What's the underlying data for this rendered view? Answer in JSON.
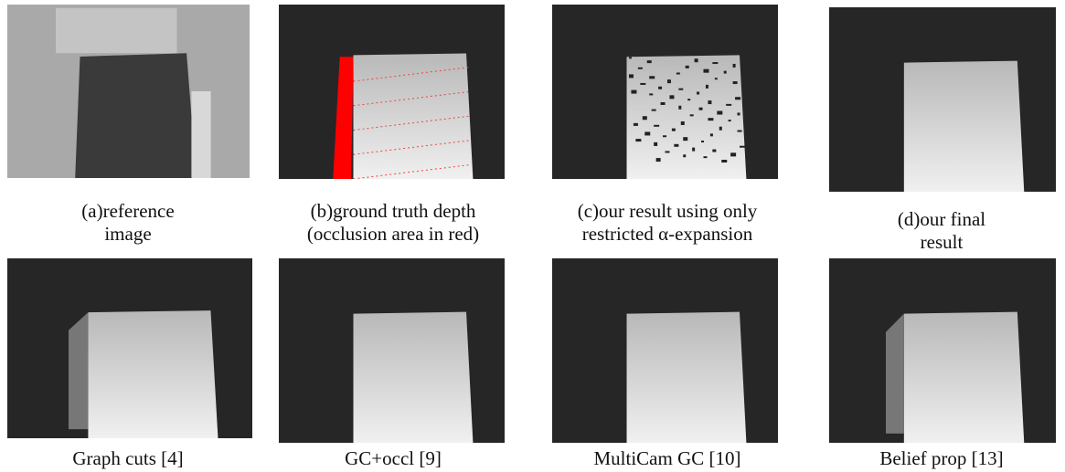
{
  "panels": [
    {
      "caption": [
        "(a)reference",
        "image"
      ]
    },
    {
      "caption": [
        "(b)ground truth depth",
        "(occlusion area in red)"
      ]
    },
    {
      "caption": [
        "(c)our result using only",
        "restricted α-expansion"
      ]
    },
    {
      "caption": [
        "(d)our final",
        "result"
      ]
    },
    {
      "caption": [
        "Graph cuts [4]"
      ]
    },
    {
      "caption": [
        "GC+occl [9]"
      ]
    },
    {
      "caption": [
        "MultiCam GC [10]"
      ]
    },
    {
      "caption": [
        "Belief prop [13]"
      ]
    }
  ]
}
